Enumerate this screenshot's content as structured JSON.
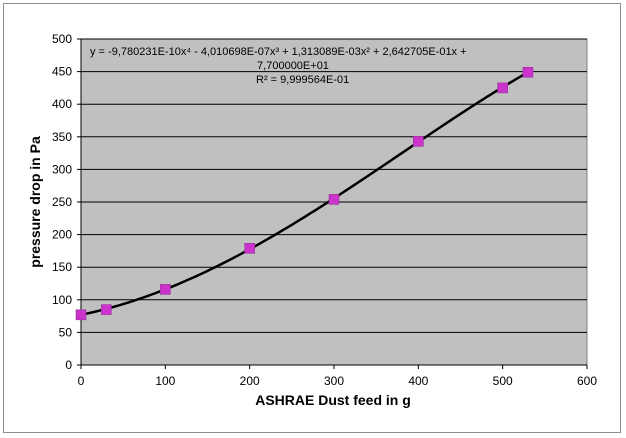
{
  "chart_data": {
    "type": "scatter",
    "xlabel": "ASHRAE Dust feed in g",
    "ylabel": "pressure drop in Pa",
    "xlim": [
      0,
      600
    ],
    "ylim": [
      0,
      500
    ],
    "x_ticks": [
      "0",
      "100",
      "200",
      "300",
      "400",
      "500",
      "600"
    ],
    "y_ticks": [
      "0",
      "50",
      "100",
      "150",
      "200",
      "250",
      "300",
      "350",
      "400",
      "450",
      "500"
    ],
    "grid": "horizontal",
    "plot_background": "#c0c0c0",
    "marker_color": "#cc33cc",
    "trendline_color": "#000000",
    "series": [
      {
        "x": [
          0,
          30,
          100,
          200,
          300,
          400,
          500,
          530
        ],
        "y": [
          77,
          85,
          116,
          179,
          254,
          343,
          425,
          449
        ]
      }
    ],
    "trendline": {
      "type": "polynomial",
      "order": 4,
      "coefficients": [
        -9.780231e-10,
        -4.010698e-07,
        0.001313089,
        0.2642705,
        77.0
      ],
      "x_range": [
        0,
        530
      ],
      "equation_line1": "y = -9,780231E-10x⁴ - 4,010698E-07x³ + 1,313089E-03x² + 2,642705E-01x +",
      "equation_line2": "7,700000E+01",
      "r_squared": "R² = 9,999564E-01"
    }
  }
}
